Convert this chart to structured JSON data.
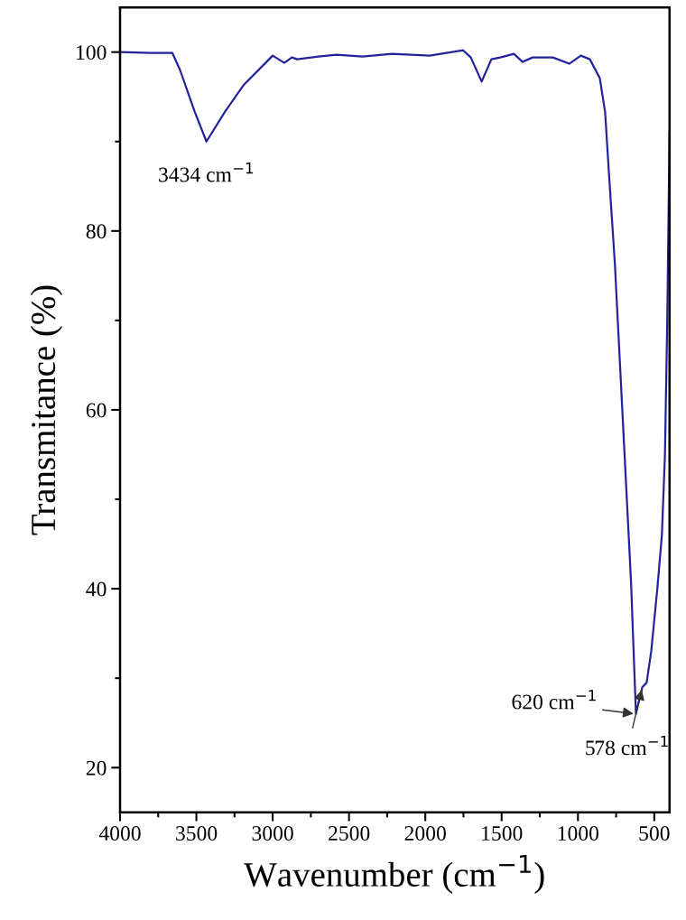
{
  "chart_data": {
    "type": "line",
    "xlabel": "Wavenumber (cm$^{−1}$)",
    "ylabel": "Transmitance (%)",
    "x": [
      4000,
      3800,
      3657,
      3607,
      3510,
      3434,
      3314,
      3191,
      3000,
      2924,
      2874,
      2839,
      2700,
      2581,
      2411,
      2218,
      1971,
      1752,
      1702,
      1631,
      1567,
      1508,
      1420,
      1362,
      1297,
      1165,
      1057,
      981,
      922,
      857,
      822,
      799,
      758,
      705,
      652,
      620,
      600,
      578,
      550,
      520,
      480,
      450,
      430,
      415,
      400
    ],
    "series": [
      {
        "color": "#22229a",
        "values": [
          100.0,
          99.9,
          99.9,
          98,
          93.3,
          90,
          93.3,
          96.3,
          99.6,
          98.8,
          99.4,
          99.2,
          99.5,
          99.7,
          99.5,
          99.8,
          99.6,
          100.2,
          99.4,
          96.7,
          99.2,
          99.4,
          99.8,
          98.9,
          99.4,
          99.4,
          98.7,
          99.6,
          99.2,
          97.1,
          93.3,
          87,
          76.3,
          58.5,
          40.7,
          26,
          27.5,
          29,
          29.5,
          33,
          40,
          46,
          55,
          70,
          91
        ]
      }
    ],
    "xlim": [
      4000,
      400
    ],
    "ylim": [
      15,
      105
    ],
    "xticks": [
      4000,
      {
        "value": 3750,
        "label": null
      },
      3500,
      {
        "value": 3250,
        "label": null
      },
      3000,
      {
        "value": 2750,
        "label": null
      },
      2500,
      {
        "value": 2250,
        "label": null
      },
      2000,
      {
        "value": 1750,
        "label": null
      },
      1500,
      {
        "value": 1250,
        "label": null
      },
      1000,
      {
        "value": 750,
        "label": null
      },
      500
    ],
    "yticks": [
      20,
      {
        "value": 30,
        "label": null
      },
      40,
      {
        "value": 50,
        "label": null
      },
      60,
      {
        "value": 70,
        "label": null
      },
      80,
      {
        "value": 90,
        "label": null
      },
      100
    ],
    "marker": "none",
    "line_style": "solid",
    "annotations": [
      {
        "text": "3434 cm$^{−1}$",
        "x": 3434,
        "y": 90
      },
      {
        "text": "620 cm$^{−1}$",
        "x": 620,
        "y": 26
      },
      {
        "text": "578 cm$^{−1}$",
        "x": 578,
        "y": 29
      }
    ]
  }
}
